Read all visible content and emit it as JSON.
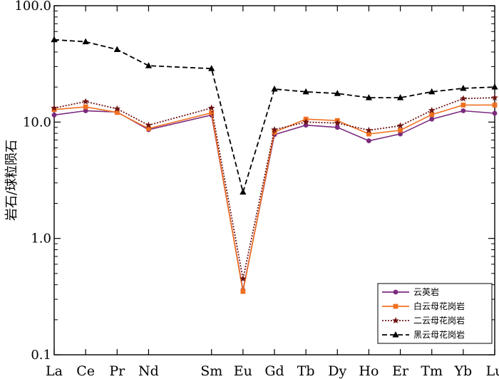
{
  "chart_data": {
    "type": "line",
    "title": "",
    "xlabel": "",
    "ylabel": "岩石/球粒陨石",
    "yscale": "log",
    "ylim": [
      0.1,
      100
    ],
    "y_ticks": [
      "100.0",
      "10.0",
      "1.0",
      "0.1"
    ],
    "categories": [
      "La",
      "Ce",
      "Pr",
      "Nd",
      "Sm",
      "Eu",
      "Gd",
      "Tb",
      "Dy",
      "Ho",
      "Er",
      "Tm",
      "Yb",
      "Lu"
    ],
    "x_positions": [
      1,
      2,
      3,
      4,
      6,
      7,
      8,
      9,
      10,
      11,
      12,
      13,
      14,
      15
    ],
    "legend_position": "lower-right",
    "series": [
      {
        "name": "云英岩",
        "color": "#7b2a7e",
        "linestyle": "solid",
        "marker": "circle",
        "values": [
          11.5,
          12.5,
          12.2,
          8.6,
          11.5,
          0.36,
          7.8,
          9.4,
          9.0,
          6.9,
          7.9,
          10.6,
          12.5,
          11.9
        ]
      },
      {
        "name": "白云母花岗岩",
        "color": "#f07020",
        "linestyle": "solid",
        "marker": "square",
        "values": [
          12.8,
          13.5,
          12.1,
          8.8,
          12.0,
          0.35,
          8.2,
          10.6,
          10.3,
          7.9,
          8.5,
          11.6,
          14.0,
          14.0
        ]
      },
      {
        "name": "二云母花岗岩",
        "color": "#6e1414",
        "linestyle": "dotted",
        "marker": "star",
        "values": [
          13.2,
          15.0,
          13.0,
          9.4,
          13.2,
          0.45,
          8.6,
          10.0,
          9.8,
          8.5,
          9.3,
          12.6,
          15.9,
          16.2
        ]
      },
      {
        "name": "黑云母花岗岩",
        "color": "#000000",
        "linestyle": "dashed",
        "marker": "triangle",
        "values": [
          51,
          49,
          42,
          30.5,
          28.8,
          2.5,
          19.2,
          18.2,
          17.6,
          16.2,
          16.2,
          18.2,
          19.5,
          20.0
        ]
      }
    ]
  }
}
